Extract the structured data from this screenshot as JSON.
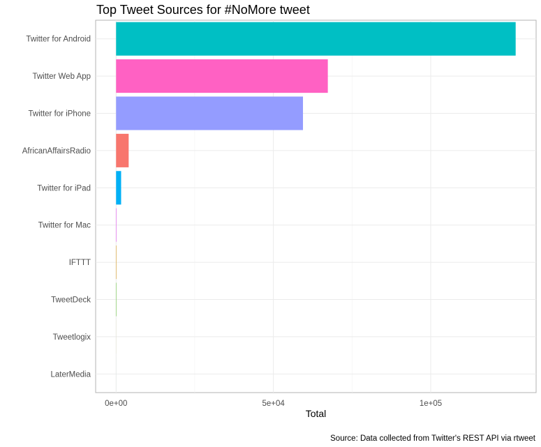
{
  "chart_data": {
    "type": "bar",
    "orientation": "horizontal",
    "title": "Top Tweet Sources for #NoMore tweet",
    "xlabel": "Total",
    "ylabel": "",
    "caption": "Source: Data collected from Twitter's REST API via rtweet",
    "categories": [
      "Twitter for Android",
      "Twitter Web App",
      "Twitter for iPhone",
      "AfricanAffairsRadio",
      "Twitter for iPad",
      "Twitter for Mac",
      "IFTTT",
      "TweetDeck",
      "Tweetlogix",
      "LaterMedia"
    ],
    "values": [
      127000,
      67300,
      59400,
      4000,
      1600,
      150,
      110,
      90,
      10,
      5
    ],
    "colors": [
      "#00BFC4",
      "#FF61C3",
      "#949CFF",
      "#F8766D",
      "#00B0F6",
      "#E76BF3",
      "#D89000",
      "#39B600",
      "#A3A500",
      "#00BF7D"
    ],
    "xlim": [
      -6500,
      133500
    ],
    "xticks": [
      0,
      50000,
      100000
    ],
    "xtick_labels": [
      "0e+00",
      "5e+04",
      "1e+05"
    ],
    "grid": true,
    "legend": "none"
  }
}
